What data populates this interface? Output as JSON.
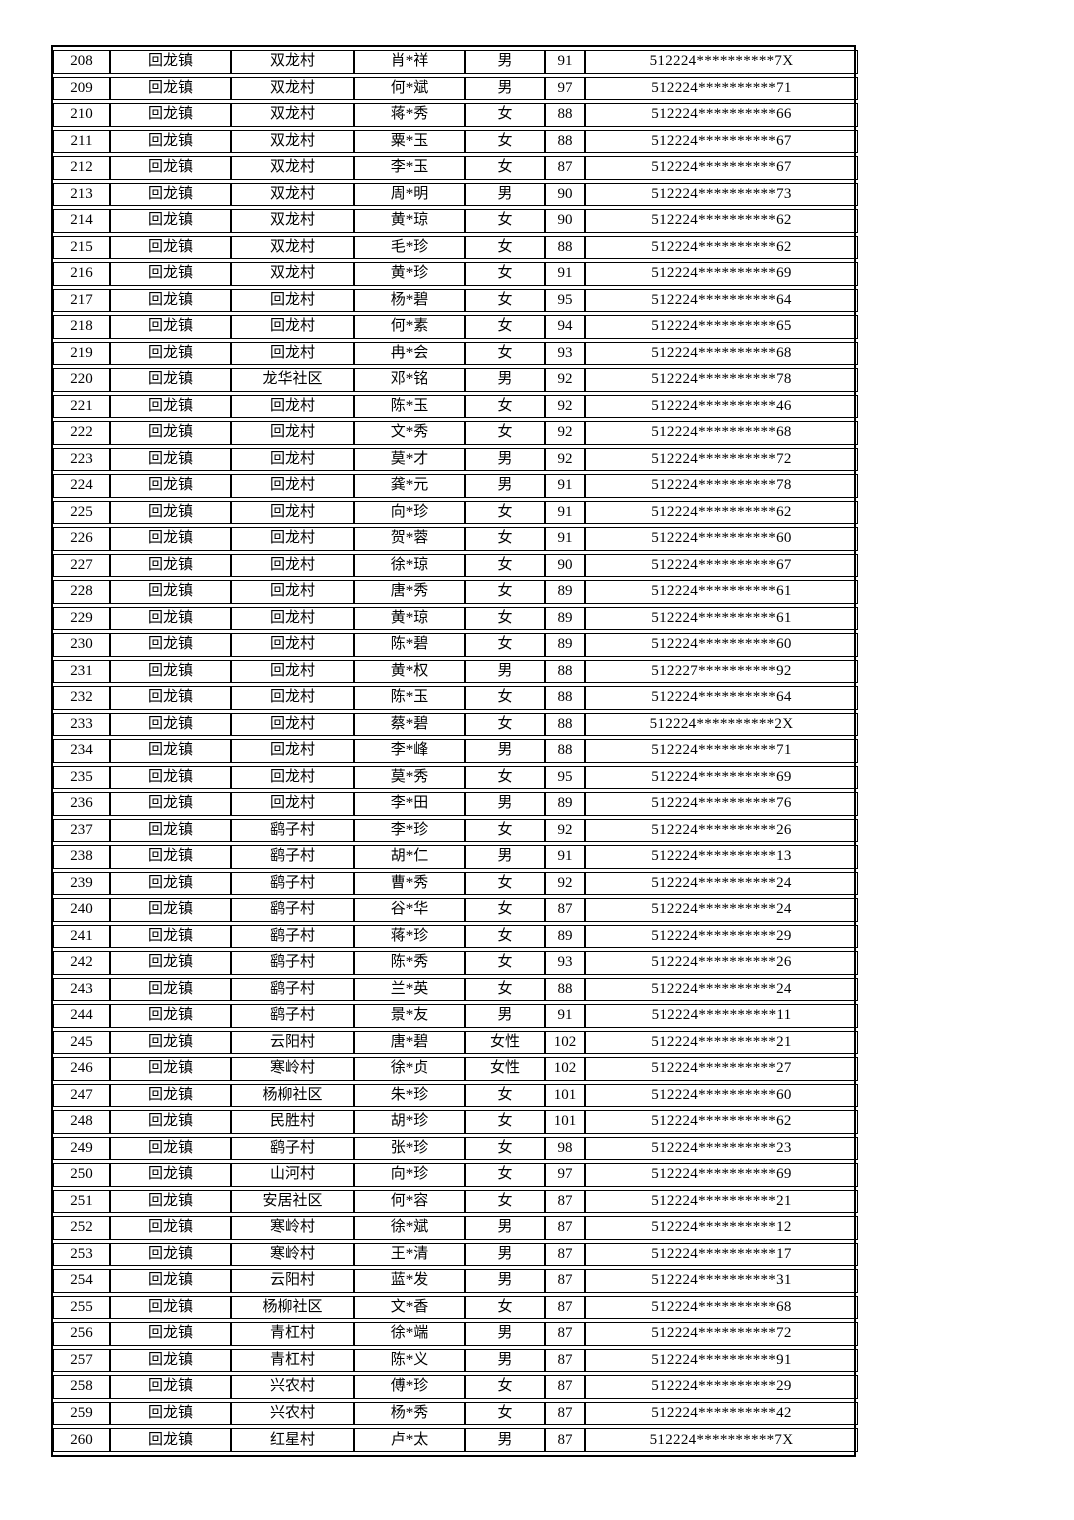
{
  "colors": {
    "page_background": "#ffffff",
    "text": "#000000",
    "table_border": "#000000"
  },
  "table": {
    "rows": [
      [
        "208",
        "回龙镇",
        "双龙村",
        "肖*祥",
        "男",
        "91",
        "512224**********7X"
      ],
      [
        "209",
        "回龙镇",
        "双龙村",
        "何*斌",
        "男",
        "97",
        "512224**********71"
      ],
      [
        "210",
        "回龙镇",
        "双龙村",
        "蒋*秀",
        "女",
        "88",
        "512224**********66"
      ],
      [
        "211",
        "回龙镇",
        "双龙村",
        "粟*玉",
        "女",
        "88",
        "512224**********67"
      ],
      [
        "212",
        "回龙镇",
        "双龙村",
        "李*玉",
        "女",
        "87",
        "512224**********67"
      ],
      [
        "213",
        "回龙镇",
        "双龙村",
        "周*明",
        "男",
        "90",
        "512224**********73"
      ],
      [
        "214",
        "回龙镇",
        "双龙村",
        "黄*琼",
        "女",
        "90",
        "512224**********62"
      ],
      [
        "215",
        "回龙镇",
        "双龙村",
        "毛*珍",
        "女",
        "88",
        "512224**********62"
      ],
      [
        "216",
        "回龙镇",
        "双龙村",
        "黄*珍",
        "女",
        "91",
        "512224**********69"
      ],
      [
        "217",
        "回龙镇",
        "回龙村",
        "杨*碧",
        "女",
        "95",
        "512224**********64"
      ],
      [
        "218",
        "回龙镇",
        "回龙村",
        "何*素",
        "女",
        "94",
        "512224**********65"
      ],
      [
        "219",
        "回龙镇",
        "回龙村",
        "冉*会",
        "女",
        "93",
        "512224**********68"
      ],
      [
        "220",
        "回龙镇",
        "龙华社区",
        "邓*铭",
        "男",
        "92",
        "512224**********78"
      ],
      [
        "221",
        "回龙镇",
        "回龙村",
        "陈*玉",
        "女",
        "92",
        "512224**********46"
      ],
      [
        "222",
        "回龙镇",
        "回龙村",
        "文*秀",
        "女",
        "92",
        "512224**********68"
      ],
      [
        "223",
        "回龙镇",
        "回龙村",
        "莫*才",
        "男",
        "92",
        "512224**********72"
      ],
      [
        "224",
        "回龙镇",
        "回龙村",
        "龚*元",
        "男",
        "91",
        "512224**********78"
      ],
      [
        "225",
        "回龙镇",
        "回龙村",
        "向*珍",
        "女",
        "91",
        "512224**********62"
      ],
      [
        "226",
        "回龙镇",
        "回龙村",
        "贺*蓉",
        "女",
        "91",
        "512224**********60"
      ],
      [
        "227",
        "回龙镇",
        "回龙村",
        "徐*琼",
        "女",
        "90",
        "512224**********67"
      ],
      [
        "228",
        "回龙镇",
        "回龙村",
        "唐*秀",
        "女",
        "89",
        "512224**********61"
      ],
      [
        "229",
        "回龙镇",
        "回龙村",
        "黄*琼",
        "女",
        "89",
        "512224**********61"
      ],
      [
        "230",
        "回龙镇",
        "回龙村",
        "陈*碧",
        "女",
        "89",
        "512224**********60"
      ],
      [
        "231",
        "回龙镇",
        "回龙村",
        "黄*权",
        "男",
        "88",
        "512227**********92"
      ],
      [
        "232",
        "回龙镇",
        "回龙村",
        "陈*玉",
        "女",
        "88",
        "512224**********64"
      ],
      [
        "233",
        "回龙镇",
        "回龙村",
        "蔡*碧",
        "女",
        "88",
        "512224**********2X"
      ],
      [
        "234",
        "回龙镇",
        "回龙村",
        "李*峰",
        "男",
        "88",
        "512224**********71"
      ],
      [
        "235",
        "回龙镇",
        "回龙村",
        "莫*秀",
        "女",
        "95",
        "512224**********69"
      ],
      [
        "236",
        "回龙镇",
        "回龙村",
        "李*田",
        "男",
        "89",
        "512224**********76"
      ],
      [
        "237",
        "回龙镇",
        "鹞子村",
        "李*珍",
        "女",
        "92",
        "512224**********26"
      ],
      [
        "238",
        "回龙镇",
        "鹞子村",
        "胡*仁",
        "男",
        "91",
        "512224**********13"
      ],
      [
        "239",
        "回龙镇",
        "鹞子村",
        "曹*秀",
        "女",
        "92",
        "512224**********24"
      ],
      [
        "240",
        "回龙镇",
        "鹞子村",
        "谷*华",
        "女",
        "87",
        "512224**********24"
      ],
      [
        "241",
        "回龙镇",
        "鹞子村",
        "蒋*珍",
        "女",
        "89",
        "512224**********29"
      ],
      [
        "242",
        "回龙镇",
        "鹞子村",
        "陈*秀",
        "女",
        "93",
        "512224**********26"
      ],
      [
        "243",
        "回龙镇",
        "鹞子村",
        "兰*英",
        "女",
        "88",
        "512224**********24"
      ],
      [
        "244",
        "回龙镇",
        "鹞子村",
        "景*友",
        "男",
        "91",
        "512224**********11"
      ],
      [
        "245",
        "回龙镇",
        "云阳村",
        "唐*碧",
        "女性",
        "102",
        "512224**********21"
      ],
      [
        "246",
        "回龙镇",
        "寒岭村",
        "徐*贞",
        "女性",
        "102",
        "512224**********27"
      ],
      [
        "247",
        "回龙镇",
        "杨柳社区",
        "朱*珍",
        "女",
        "101",
        "512224**********60"
      ],
      [
        "248",
        "回龙镇",
        "民胜村",
        "胡*珍",
        "女",
        "101",
        "512224**********62"
      ],
      [
        "249",
        "回龙镇",
        "鹞子村",
        "张*珍",
        "女",
        "98",
        "512224**********23"
      ],
      [
        "250",
        "回龙镇",
        "山河村",
        "向*珍",
        "女",
        "97",
        "512224**********69"
      ],
      [
        "251",
        "回龙镇",
        "安居社区",
        "何*容",
        "女",
        "87",
        "512224**********21"
      ],
      [
        "252",
        "回龙镇",
        "寒岭村",
        "徐*斌",
        "男",
        "87",
        "512224**********12"
      ],
      [
        "253",
        "回龙镇",
        "寒岭村",
        "王*清",
        "男",
        "87",
        "512224**********17"
      ],
      [
        "254",
        "回龙镇",
        "云阳村",
        "蓝*发",
        "男",
        "87",
        "512224**********31"
      ],
      [
        "255",
        "回龙镇",
        "杨柳社区",
        "文*香",
        "女",
        "87",
        "512224**********68"
      ],
      [
        "256",
        "回龙镇",
        "青杠村",
        "徐*端",
        "男",
        "87",
        "512224**********72"
      ],
      [
        "257",
        "回龙镇",
        "青杠村",
        "陈*义",
        "男",
        "87",
        "512224**********91"
      ],
      [
        "258",
        "回龙镇",
        "兴农村",
        "傅*珍",
        "女",
        "87",
        "512224**********29"
      ],
      [
        "259",
        "回龙镇",
        "兴农村",
        "杨*秀",
        "女",
        "87",
        "512224**********42"
      ],
      [
        "260",
        "回龙镇",
        "红星村",
        "卢*太",
        "男",
        "87",
        "512224**********7X"
      ]
    ]
  }
}
